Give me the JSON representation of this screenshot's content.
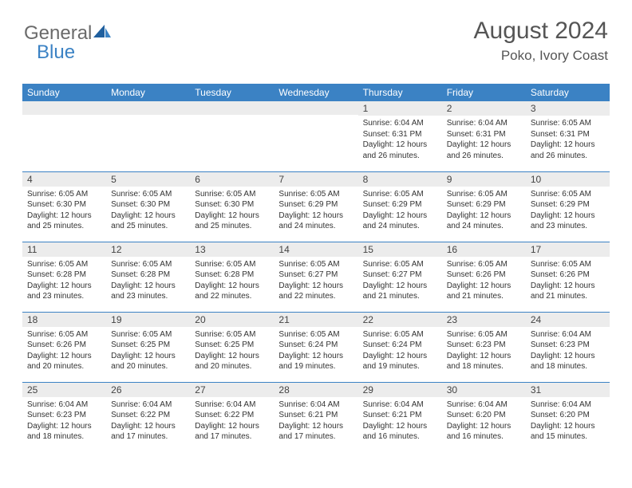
{
  "logo": {
    "text1": "General",
    "text2": "Blue"
  },
  "header": {
    "title": "August 2024",
    "location": "Poko, Ivory Coast"
  },
  "colors": {
    "header_bg": "#3b82c4",
    "daynum_bg": "#ececec",
    "text": "#333333",
    "title": "#555555"
  },
  "day_names": [
    "Sunday",
    "Monday",
    "Tuesday",
    "Wednesday",
    "Thursday",
    "Friday",
    "Saturday"
  ],
  "weeks": [
    [
      null,
      null,
      null,
      null,
      {
        "n": "1",
        "sr": "6:04 AM",
        "ss": "6:31 PM",
        "dl": "12 hours and 26 minutes."
      },
      {
        "n": "2",
        "sr": "6:04 AM",
        "ss": "6:31 PM",
        "dl": "12 hours and 26 minutes."
      },
      {
        "n": "3",
        "sr": "6:05 AM",
        "ss": "6:31 PM",
        "dl": "12 hours and 26 minutes."
      }
    ],
    [
      {
        "n": "4",
        "sr": "6:05 AM",
        "ss": "6:30 PM",
        "dl": "12 hours and 25 minutes."
      },
      {
        "n": "5",
        "sr": "6:05 AM",
        "ss": "6:30 PM",
        "dl": "12 hours and 25 minutes."
      },
      {
        "n": "6",
        "sr": "6:05 AM",
        "ss": "6:30 PM",
        "dl": "12 hours and 25 minutes."
      },
      {
        "n": "7",
        "sr": "6:05 AM",
        "ss": "6:29 PM",
        "dl": "12 hours and 24 minutes."
      },
      {
        "n": "8",
        "sr": "6:05 AM",
        "ss": "6:29 PM",
        "dl": "12 hours and 24 minutes."
      },
      {
        "n": "9",
        "sr": "6:05 AM",
        "ss": "6:29 PM",
        "dl": "12 hours and 24 minutes."
      },
      {
        "n": "10",
        "sr": "6:05 AM",
        "ss": "6:29 PM",
        "dl": "12 hours and 23 minutes."
      }
    ],
    [
      {
        "n": "11",
        "sr": "6:05 AM",
        "ss": "6:28 PM",
        "dl": "12 hours and 23 minutes."
      },
      {
        "n": "12",
        "sr": "6:05 AM",
        "ss": "6:28 PM",
        "dl": "12 hours and 23 minutes."
      },
      {
        "n": "13",
        "sr": "6:05 AM",
        "ss": "6:28 PM",
        "dl": "12 hours and 22 minutes."
      },
      {
        "n": "14",
        "sr": "6:05 AM",
        "ss": "6:27 PM",
        "dl": "12 hours and 22 minutes."
      },
      {
        "n": "15",
        "sr": "6:05 AM",
        "ss": "6:27 PM",
        "dl": "12 hours and 21 minutes."
      },
      {
        "n": "16",
        "sr": "6:05 AM",
        "ss": "6:26 PM",
        "dl": "12 hours and 21 minutes."
      },
      {
        "n": "17",
        "sr": "6:05 AM",
        "ss": "6:26 PM",
        "dl": "12 hours and 21 minutes."
      }
    ],
    [
      {
        "n": "18",
        "sr": "6:05 AM",
        "ss": "6:26 PM",
        "dl": "12 hours and 20 minutes."
      },
      {
        "n": "19",
        "sr": "6:05 AM",
        "ss": "6:25 PM",
        "dl": "12 hours and 20 minutes."
      },
      {
        "n": "20",
        "sr": "6:05 AM",
        "ss": "6:25 PM",
        "dl": "12 hours and 20 minutes."
      },
      {
        "n": "21",
        "sr": "6:05 AM",
        "ss": "6:24 PM",
        "dl": "12 hours and 19 minutes."
      },
      {
        "n": "22",
        "sr": "6:05 AM",
        "ss": "6:24 PM",
        "dl": "12 hours and 19 minutes."
      },
      {
        "n": "23",
        "sr": "6:05 AM",
        "ss": "6:23 PM",
        "dl": "12 hours and 18 minutes."
      },
      {
        "n": "24",
        "sr": "6:04 AM",
        "ss": "6:23 PM",
        "dl": "12 hours and 18 minutes."
      }
    ],
    [
      {
        "n": "25",
        "sr": "6:04 AM",
        "ss": "6:23 PM",
        "dl": "12 hours and 18 minutes."
      },
      {
        "n": "26",
        "sr": "6:04 AM",
        "ss": "6:22 PM",
        "dl": "12 hours and 17 minutes."
      },
      {
        "n": "27",
        "sr": "6:04 AM",
        "ss": "6:22 PM",
        "dl": "12 hours and 17 minutes."
      },
      {
        "n": "28",
        "sr": "6:04 AM",
        "ss": "6:21 PM",
        "dl": "12 hours and 17 minutes."
      },
      {
        "n": "29",
        "sr": "6:04 AM",
        "ss": "6:21 PM",
        "dl": "12 hours and 16 minutes."
      },
      {
        "n": "30",
        "sr": "6:04 AM",
        "ss": "6:20 PM",
        "dl": "12 hours and 16 minutes."
      },
      {
        "n": "31",
        "sr": "6:04 AM",
        "ss": "6:20 PM",
        "dl": "12 hours and 15 minutes."
      }
    ]
  ],
  "labels": {
    "sunrise": "Sunrise:",
    "sunset": "Sunset:",
    "daylight": "Daylight:"
  }
}
